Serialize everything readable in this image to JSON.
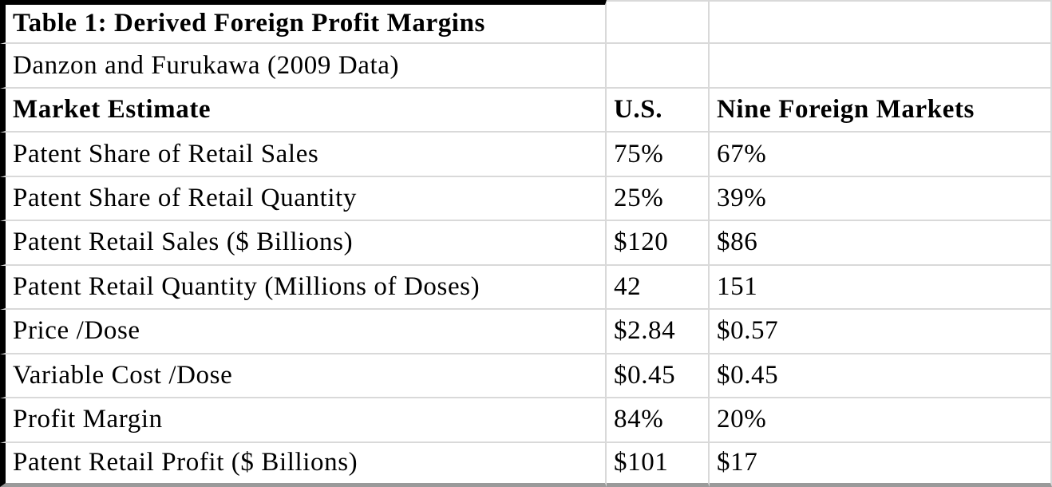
{
  "table": {
    "title": "Table 1: Derived Foreign Profit Margins",
    "subtitle": "Danzon and Furukawa (2009 Data)",
    "columns": {
      "label": "Market Estimate",
      "us": "U.S.",
      "foreign": "Nine Foreign Markets"
    },
    "rows": [
      {
        "label": "Patent Share of Retail Sales",
        "us": "75%",
        "foreign": "67%"
      },
      {
        "label": "Patent Share of Retail Quantity",
        "us": "25%",
        "foreign": "39%"
      },
      {
        "label": "Patent Retail Sales ($ Billions)",
        "us": "$120",
        "foreign": "$86"
      },
      {
        "label": "Patent Retail Quantity (Millions of Doses)",
        "us": "42",
        "foreign": "151"
      },
      {
        "label": "Price /Dose",
        "us": "$2.84",
        "foreign": "$0.57"
      },
      {
        "label": "Variable Cost /Dose",
        "us": "$0.45",
        "foreign": "$0.45"
      },
      {
        "label": "Profit Margin",
        "us": "84%",
        "foreign": "20%"
      },
      {
        "label": "Patent Retail Profit ($ Billions)",
        "us": "$101",
        "foreign": "$17"
      }
    ]
  },
  "colors": {
    "heavy_border": "#000000",
    "gridline": "#d9d9d9",
    "bottom_border": "#9a9a9a",
    "text": "#000000",
    "background": "#ffffff"
  }
}
